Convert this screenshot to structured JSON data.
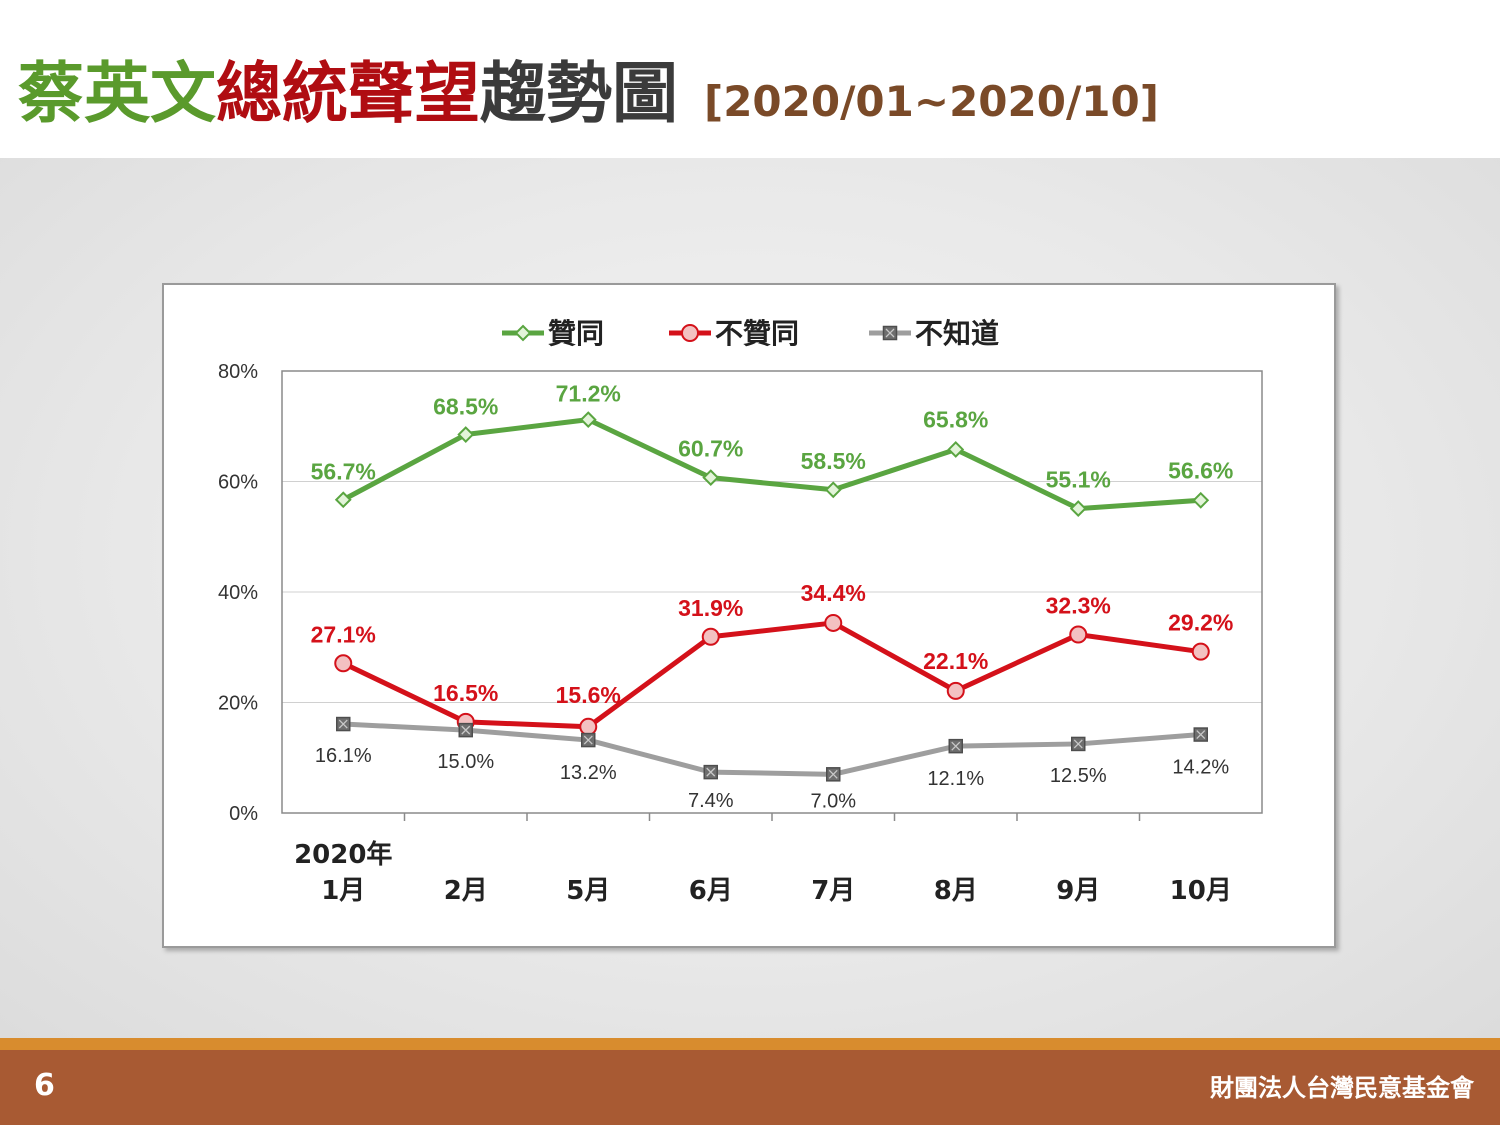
{
  "slide": {
    "title_green": "蔡英文",
    "title_red": "總統聲望",
    "title_gray": "趨勢圖",
    "title_range": "[2020/01~2020/10]",
    "page_number": "6",
    "organization": "財團法人台灣民意基金會"
  },
  "chart_data": {
    "type": "line",
    "categories": [
      [
        "2020年",
        "1月"
      ],
      [
        "2月"
      ],
      [
        "5月"
      ],
      [
        "6月"
      ],
      [
        "7月"
      ],
      [
        "8月"
      ],
      [
        "9月"
      ],
      [
        "10月"
      ]
    ],
    "ylim": [
      0,
      80
    ],
    "yticks": [
      "0%",
      "20%",
      "40%",
      "60%",
      "80%"
    ],
    "grid": true,
    "legend_position": "top",
    "series": [
      {
        "name": "贊同",
        "color": "#5aa541",
        "marker": "diamond",
        "values": [
          56.7,
          68.5,
          71.2,
          60.7,
          58.5,
          65.8,
          55.1,
          56.6
        ],
        "labels": [
          "56.7%",
          "68.5%",
          "71.2%",
          "60.7%",
          "58.5%",
          "65.8%",
          "55.1%",
          "56.6%"
        ]
      },
      {
        "name": "不贊同",
        "color": "#d4111a",
        "marker": "circle",
        "values": [
          27.1,
          16.5,
          15.6,
          31.9,
          34.4,
          22.1,
          32.3,
          29.2
        ],
        "labels": [
          "27.1%",
          "16.5%",
          "15.6%",
          "31.9%",
          "34.4%",
          "22.1%",
          "32.3%",
          "29.2%"
        ]
      },
      {
        "name": "不知道",
        "color": "#9e9e9e",
        "marker": "square",
        "values": [
          16.1,
          15.0,
          13.2,
          7.4,
          7.0,
          12.1,
          12.5,
          14.2
        ],
        "labels": [
          "16.1%",
          "15.0%",
          "13.2%",
          "7.4%",
          "7.0%",
          "12.1%",
          "12.5%",
          "14.2%"
        ]
      }
    ]
  }
}
